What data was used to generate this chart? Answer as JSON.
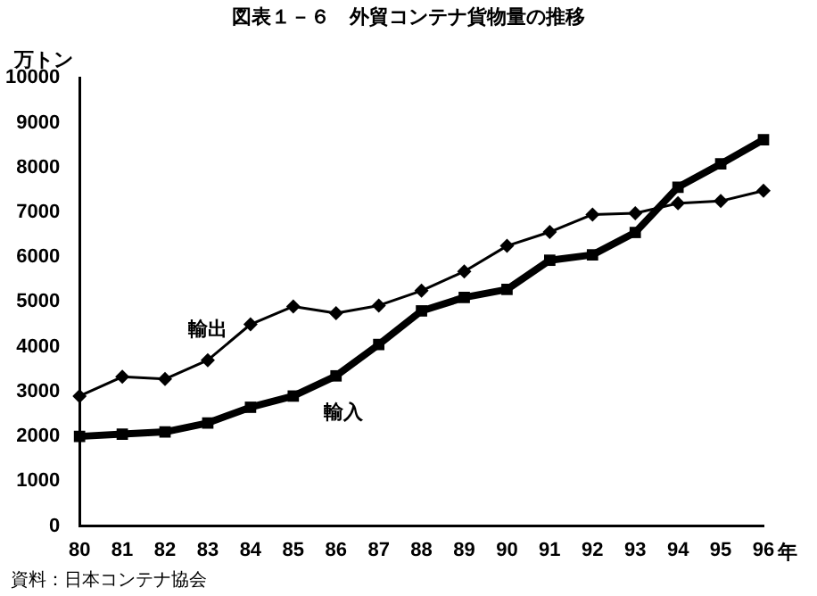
{
  "chart_data": {
    "type": "line",
    "title": "図表１－６　外貿コンテナ貨物量の推移",
    "ylabel": "万トン",
    "xlabel": "年",
    "categories": [
      "80",
      "81",
      "82",
      "83",
      "84",
      "85",
      "86",
      "87",
      "88",
      "89",
      "90",
      "91",
      "92",
      "93",
      "94",
      "95",
      "96"
    ],
    "series": [
      {
        "name": "輸出",
        "color": "#000000",
        "marker": "diamond",
        "values": [
          2900,
          3330,
          3280,
          3700,
          4500,
          4900,
          4750,
          4920,
          5250,
          5680,
          6250,
          6560,
          6950,
          6980,
          7200,
          7250,
          7480
        ]
      },
      {
        "name": "輸入",
        "color": "#000000",
        "marker": "square",
        "values": [
          2000,
          2050,
          2100,
          2300,
          2650,
          2900,
          3350,
          4050,
          4800,
          5100,
          5280,
          5930,
          6050,
          6550,
          7560,
          8080,
          8620
        ]
      }
    ],
    "ylim": [
      0,
      10000
    ],
    "yticks": [
      0,
      1000,
      2000,
      3000,
      4000,
      5000,
      6000,
      7000,
      8000,
      9000,
      10000
    ],
    "grid": false,
    "legend": false,
    "annotations": [
      "資料：日本コンテナ協会"
    ]
  }
}
